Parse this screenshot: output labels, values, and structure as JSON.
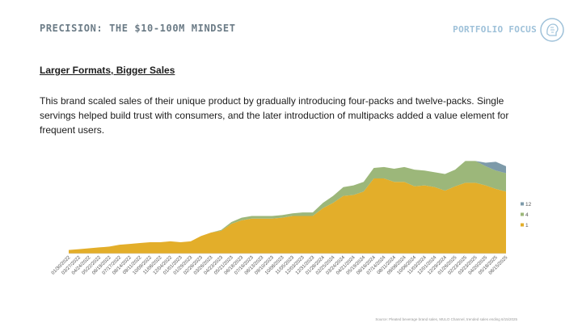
{
  "header": {
    "title": "PRECISION: THE $10-100M MINDSET",
    "brand": "PORTFOLIO FOCUS"
  },
  "section": {
    "title": "Larger Formats, Bigger Sales",
    "body": "This brand scaled sales of their unique product by gradually introducing four-packs and twelve-packs. Single servings helped build trust with consumers, and the later introduction of multipacks added a value element for frequent users."
  },
  "source": "Source: Pleated beverage brand sales, MULO Channel, trended sales ending 6/15/2025",
  "colors": {
    "header": "#6b7b86",
    "brand": "#9ec1d9",
    "series_1": "#e3ae2a",
    "series_4": "#9cb77a",
    "series_12": "#7d9aa9"
  },
  "chart_data": {
    "type": "area",
    "stacked": true,
    "title": "",
    "xlabel": "",
    "ylabel": "",
    "grid": false,
    "legend_position": "right",
    "x": [
      "01/30/2022",
      "03/27/2022",
      "04/24/2022",
      "05/22/2022",
      "06/19/2022",
      "07/17/2022",
      "08/14/2022",
      "09/11/2022",
      "10/09/2022",
      "11/06/2022",
      "12/04/2022",
      "01/01/2023",
      "01/29/2023",
      "02/26/2023",
      "03/26/2023",
      "04/23/2023",
      "05/21/2023",
      "06/18/2023",
      "07/16/2023",
      "08/13/2023",
      "09/10/2023",
      "10/08/2023",
      "11/05/2023",
      "12/03/2023",
      "12/31/2023",
      "01/28/2024",
      "02/25/2024",
      "03/24/2024",
      "04/21/2024",
      "05/19/2024",
      "06/16/2024",
      "07/14/2024",
      "08/11/2024",
      "09/08/2024",
      "10/06/2024",
      "11/03/2024",
      "12/01/2024",
      "12/29/2024",
      "01/26/2025",
      "02/23/2025",
      "03/23/2025",
      "04/20/2025",
      "05/18/2025",
      "06/15/2025"
    ],
    "series": [
      {
        "name": "1",
        "values": [
          4.0,
          5.0,
          6.0,
          7.0,
          8.0,
          10.0,
          11.0,
          12.0,
          13.0,
          13.0,
          14.0,
          13.0,
          14.0,
          20.0,
          24.0,
          26.0,
          34.0,
          38.0,
          40.0,
          40.0,
          40.0,
          41.0,
          43.0,
          43.0,
          43.0,
          52.0,
          58.0,
          66.0,
          67.0,
          71.0,
          86.0,
          86.0,
          82.0,
          82.0,
          77.0,
          78.0,
          76.0,
          72.0,
          77.0,
          81.0,
          81.0,
          78.0,
          74.0,
          71.0
        ]
      },
      {
        "name": "4",
        "values": [
          0,
          0,
          0,
          0,
          0,
          0,
          0,
          0,
          0,
          0,
          0,
          0,
          0,
          0,
          0,
          1.0,
          2.0,
          3.0,
          3.0,
          3.0,
          3.0,
          3.0,
          3.0,
          4.0,
          4.0,
          6.0,
          8.0,
          10.0,
          11.0,
          11.0,
          12.0,
          13.0,
          15.0,
          17.0,
          19.0,
          17.0,
          17.0,
          19.0,
          19.0,
          25.0,
          25.0,
          22.0,
          21.0,
          21.0
        ]
      },
      {
        "name": "12",
        "values": [
          0,
          0,
          0,
          0,
          0,
          0,
          0,
          0,
          0,
          0,
          0,
          0,
          0,
          0,
          0,
          0,
          0,
          0,
          0,
          0,
          0,
          0,
          0,
          0,
          0,
          0,
          0,
          0,
          0,
          0,
          0,
          0,
          0,
          0,
          0,
          0,
          0,
          0,
          0,
          0,
          0,
          4.0,
          10.0,
          8.0
        ]
      }
    ],
    "ylim": [
      0,
      110
    ],
    "legend": [
      "12",
      "4",
      "1"
    ]
  }
}
